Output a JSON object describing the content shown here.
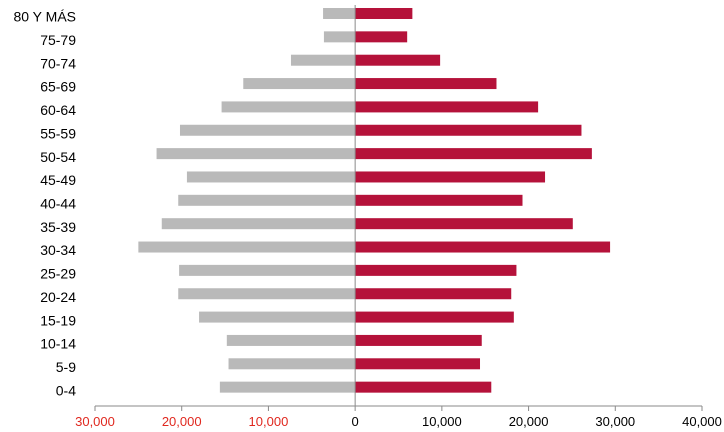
{
  "chart_data": {
    "type": "bar",
    "orientation": "horizontal-population-pyramid",
    "categories": [
      "0-4",
      "5-9",
      "10-14",
      "15-19",
      "20-24",
      "25-29",
      "30-34",
      "35-39",
      "40-44",
      "45-49",
      "50-54",
      "55-59",
      "60-64",
      "65-69",
      "70-74",
      "75-79",
      "80 Y MÁS"
    ],
    "series": [
      {
        "color": "#b9b9b9",
        "side": "left",
        "values": [
          15600,
          14600,
          14800,
          18000,
          20400,
          20300,
          25000,
          22300,
          20400,
          19400,
          22900,
          20200,
          15400,
          12900,
          7400,
          3600,
          3700
        ]
      },
      {
        "color": "#b5123a",
        "side": "right",
        "values": [
          15700,
          14400,
          14600,
          18300,
          18000,
          18600,
          29400,
          25100,
          19300,
          21900,
          27300,
          26100,
          21100,
          16300,
          9800,
          6000,
          6600
        ]
      }
    ],
    "xaxis": {
      "ticks": [
        {
          "value": -30000,
          "label": "30,000",
          "color": "#e0281f"
        },
        {
          "value": -20000,
          "label": "20,000",
          "color": "#e0281f"
        },
        {
          "value": -10000,
          "label": "10,000",
          "color": "#e0281f"
        },
        {
          "value": 0,
          "label": "0",
          "color": "#000000"
        },
        {
          "value": 10000,
          "label": "10,000",
          "color": "#000000"
        },
        {
          "value": 20000,
          "label": "20,000",
          "color": "#000000"
        },
        {
          "value": 30000,
          "label": "30,000",
          "color": "#000000"
        },
        {
          "value": 40000,
          "label": "40,000",
          "color": "#000000"
        }
      ],
      "range": [
        -30000,
        40000
      ]
    },
    "axis_color": "#8a8a8a",
    "grid": false
  }
}
